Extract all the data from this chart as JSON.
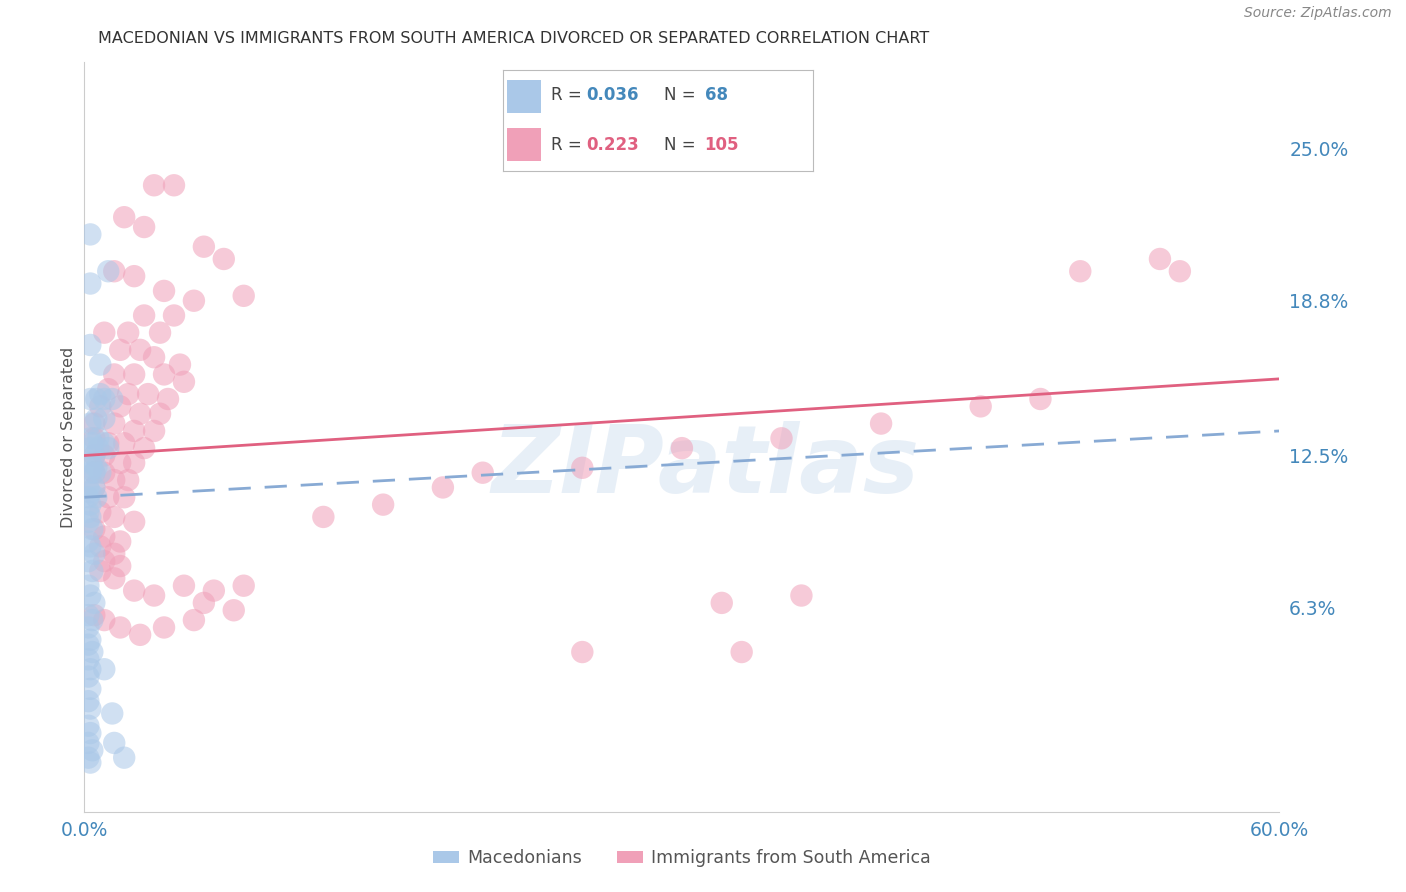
{
  "title": "MACEDONIAN VS IMMIGRANTS FROM SOUTH AMERICA DIVORCED OR SEPARATED CORRELATION CHART",
  "source": "Source: ZipAtlas.com",
  "ylabel": "Divorced or Separated",
  "ytick_labels": [
    "25.0%",
    "18.8%",
    "12.5%",
    "6.3%"
  ],
  "ytick_values": [
    0.25,
    0.188,
    0.125,
    0.063
  ],
  "xmin": 0.0,
  "xmax": 0.6,
  "ymin": -0.02,
  "ymax": 0.285,
  "legend_R1": "0.036",
  "legend_N1": "68",
  "legend_R2": "0.223",
  "legend_N2": "105",
  "legend_label1": "Macedonians",
  "legend_label2": "Immigrants from South America",
  "watermark": "ZIPatlas",
  "blue_line_color": "#88aad4",
  "pink_line_color": "#e06080",
  "blue_dot_color": "#aac8e8",
  "pink_dot_color": "#f0a0b8",
  "background_color": "#ffffff",
  "grid_color": "#d0d0d0",
  "axis_label_color": "#4488bb",
  "title_color": "#333333",
  "source_color": "#888888",
  "mac_points": [
    [
      0.003,
      0.215
    ],
    [
      0.003,
      0.195
    ],
    [
      0.012,
      0.2
    ],
    [
      0.003,
      0.17
    ],
    [
      0.008,
      0.162
    ],
    [
      0.003,
      0.148
    ],
    [
      0.006,
      0.148
    ],
    [
      0.008,
      0.15
    ],
    [
      0.01,
      0.148
    ],
    [
      0.014,
      0.148
    ],
    [
      0.003,
      0.138
    ],
    [
      0.006,
      0.14
    ],
    [
      0.01,
      0.14
    ],
    [
      0.003,
      0.132
    ],
    [
      0.004,
      0.13
    ],
    [
      0.007,
      0.132
    ],
    [
      0.01,
      0.13
    ],
    [
      0.003,
      0.128
    ],
    [
      0.005,
      0.125
    ],
    [
      0.007,
      0.128
    ],
    [
      0.012,
      0.128
    ],
    [
      0.003,
      0.122
    ],
    [
      0.004,
      0.12
    ],
    [
      0.006,
      0.12
    ],
    [
      0.003,
      0.118
    ],
    [
      0.005,
      0.118
    ],
    [
      0.008,
      0.118
    ],
    [
      0.002,
      0.112
    ],
    [
      0.003,
      0.11
    ],
    [
      0.005,
      0.112
    ],
    [
      0.002,
      0.108
    ],
    [
      0.003,
      0.105
    ],
    [
      0.006,
      0.108
    ],
    [
      0.002,
      0.102
    ],
    [
      0.003,
      0.1
    ],
    [
      0.002,
      0.098
    ],
    [
      0.004,
      0.095
    ],
    [
      0.002,
      0.09
    ],
    [
      0.003,
      0.088
    ],
    [
      0.005,
      0.085
    ],
    [
      0.002,
      0.082
    ],
    [
      0.004,
      0.078
    ],
    [
      0.002,
      0.072
    ],
    [
      0.003,
      0.068
    ],
    [
      0.005,
      0.065
    ],
    [
      0.002,
      0.06
    ],
    [
      0.004,
      0.058
    ],
    [
      0.002,
      0.055
    ],
    [
      0.003,
      0.05
    ],
    [
      0.002,
      0.048
    ],
    [
      0.004,
      0.045
    ],
    [
      0.002,
      0.042
    ],
    [
      0.003,
      0.038
    ],
    [
      0.002,
      0.035
    ],
    [
      0.003,
      0.03
    ],
    [
      0.002,
      0.025
    ],
    [
      0.003,
      0.022
    ],
    [
      0.002,
      0.015
    ],
    [
      0.003,
      0.012
    ],
    [
      0.002,
      0.008
    ],
    [
      0.004,
      0.005
    ],
    [
      0.002,
      0.002
    ],
    [
      0.003,
      0.0
    ],
    [
      0.015,
      0.008
    ],
    [
      0.014,
      0.02
    ],
    [
      0.01,
      0.038
    ],
    [
      0.02,
      0.002
    ]
  ],
  "sa_points": [
    [
      0.035,
      0.235
    ],
    [
      0.045,
      0.235
    ],
    [
      0.02,
      0.222
    ],
    [
      0.03,
      0.218
    ],
    [
      0.06,
      0.21
    ],
    [
      0.07,
      0.205
    ],
    [
      0.015,
      0.2
    ],
    [
      0.025,
      0.198
    ],
    [
      0.04,
      0.192
    ],
    [
      0.055,
      0.188
    ],
    [
      0.08,
      0.19
    ],
    [
      0.03,
      0.182
    ],
    [
      0.045,
      0.182
    ],
    [
      0.01,
      0.175
    ],
    [
      0.022,
      0.175
    ],
    [
      0.038,
      0.175
    ],
    [
      0.018,
      0.168
    ],
    [
      0.028,
      0.168
    ],
    [
      0.035,
      0.165
    ],
    [
      0.048,
      0.162
    ],
    [
      0.015,
      0.158
    ],
    [
      0.025,
      0.158
    ],
    [
      0.04,
      0.158
    ],
    [
      0.05,
      0.155
    ],
    [
      0.012,
      0.152
    ],
    [
      0.022,
      0.15
    ],
    [
      0.032,
      0.15
    ],
    [
      0.042,
      0.148
    ],
    [
      0.008,
      0.145
    ],
    [
      0.018,
      0.145
    ],
    [
      0.028,
      0.142
    ],
    [
      0.038,
      0.142
    ],
    [
      0.005,
      0.138
    ],
    [
      0.015,
      0.138
    ],
    [
      0.025,
      0.135
    ],
    [
      0.035,
      0.135
    ],
    [
      0.005,
      0.132
    ],
    [
      0.012,
      0.13
    ],
    [
      0.02,
      0.13
    ],
    [
      0.03,
      0.128
    ],
    [
      0.005,
      0.125
    ],
    [
      0.01,
      0.125
    ],
    [
      0.018,
      0.122
    ],
    [
      0.025,
      0.122
    ],
    [
      0.005,
      0.118
    ],
    [
      0.01,
      0.118
    ],
    [
      0.015,
      0.115
    ],
    [
      0.022,
      0.115
    ],
    [
      0.005,
      0.112
    ],
    [
      0.012,
      0.108
    ],
    [
      0.02,
      0.108
    ],
    [
      0.008,
      0.102
    ],
    [
      0.015,
      0.1
    ],
    [
      0.025,
      0.098
    ],
    [
      0.005,
      0.095
    ],
    [
      0.01,
      0.092
    ],
    [
      0.018,
      0.09
    ],
    [
      0.008,
      0.088
    ],
    [
      0.015,
      0.085
    ],
    [
      0.01,
      0.082
    ],
    [
      0.018,
      0.08
    ],
    [
      0.008,
      0.078
    ],
    [
      0.015,
      0.075
    ],
    [
      0.025,
      0.07
    ],
    [
      0.035,
      0.068
    ],
    [
      0.05,
      0.072
    ],
    [
      0.065,
      0.07
    ],
    [
      0.08,
      0.072
    ],
    [
      0.06,
      0.065
    ],
    [
      0.075,
      0.062
    ],
    [
      0.005,
      0.06
    ],
    [
      0.01,
      0.058
    ],
    [
      0.018,
      0.055
    ],
    [
      0.028,
      0.052
    ],
    [
      0.04,
      0.055
    ],
    [
      0.055,
      0.058
    ],
    [
      0.12,
      0.1
    ],
    [
      0.15,
      0.105
    ],
    [
      0.18,
      0.112
    ],
    [
      0.2,
      0.118
    ],
    [
      0.25,
      0.12
    ],
    [
      0.3,
      0.128
    ],
    [
      0.35,
      0.132
    ],
    [
      0.4,
      0.138
    ],
    [
      0.32,
      0.065
    ],
    [
      0.36,
      0.068
    ],
    [
      0.45,
      0.145
    ],
    [
      0.48,
      0.148
    ],
    [
      0.5,
      0.2
    ],
    [
      0.54,
      0.205
    ],
    [
      0.33,
      0.045
    ],
    [
      0.25,
      0.045
    ],
    [
      0.55,
      0.2
    ]
  ]
}
